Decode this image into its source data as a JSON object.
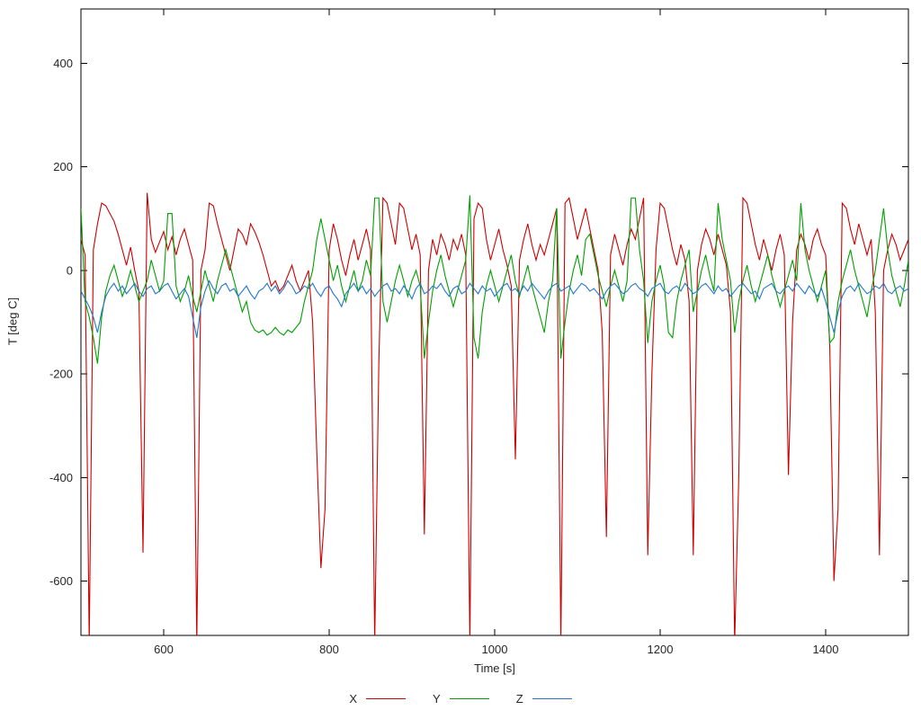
{
  "chart_data": {
    "type": "line",
    "title": "",
    "xlabel": "Time [s]",
    "ylabel": "T [deg C]",
    "xlim": [
      500,
      1500
    ],
    "ylim": [
      -705,
      505
    ],
    "xticks": [
      600,
      800,
      1000,
      1200,
      1400
    ],
    "yticks": [
      -600,
      -400,
      -200,
      0,
      200,
      400
    ],
    "grid": false,
    "legend_position": "below",
    "x_start": 500,
    "x_step": 5,
    "series": [
      {
        "name": "X",
        "color": "#cc0000",
        "values": [
          60,
          30,
          -720,
          40,
          90,
          130,
          125,
          110,
          95,
          70,
          40,
          10,
          45,
          0,
          -40,
          -545,
          150,
          60,
          35,
          55,
          75,
          40,
          65,
          30,
          60,
          80,
          50,
          20,
          -720,
          0,
          40,
          130,
          125,
          90,
          60,
          30,
          0,
          40,
          80,
          70,
          50,
          90,
          75,
          55,
          30,
          0,
          -30,
          -20,
          -40,
          -30,
          -10,
          10,
          -20,
          -40,
          -20,
          0,
          -100,
          -350,
          -575,
          -460,
          40,
          90,
          60,
          20,
          -10,
          30,
          60,
          20,
          50,
          80,
          40,
          -720,
          -180,
          140,
          130,
          90,
          50,
          130,
          120,
          80,
          40,
          70,
          30,
          -510,
          0,
          60,
          30,
          70,
          50,
          20,
          60,
          40,
          70,
          30,
          -720,
          100,
          130,
          120,
          60,
          20,
          50,
          80,
          40,
          10,
          -30,
          -365,
          20,
          60,
          90,
          50,
          20,
          50,
          30,
          60,
          90,
          120,
          -720,
          130,
          140,
          100,
          60,
          90,
          120,
          80,
          40,
          0,
          -120,
          -515,
          30,
          70,
          40,
          10,
          50,
          80,
          60,
          100,
          140,
          -550,
          -200,
          40,
          130,
          120,
          80,
          40,
          10,
          50,
          20,
          -60,
          -550,
          0,
          50,
          80,
          60,
          30,
          70,
          40,
          10,
          -80,
          -720,
          -400,
          140,
          130,
          90,
          50,
          20,
          60,
          30,
          0,
          40,
          70,
          30,
          -395,
          -100,
          40,
          70,
          50,
          20,
          60,
          80,
          50,
          30,
          -150,
          -600,
          -460,
          130,
          120,
          80,
          50,
          90,
          60,
          30,
          60,
          -80,
          -550,
          0,
          40,
          70,
          50,
          20,
          40,
          60
        ]
      },
      {
        "name": "Y",
        "color": "#00a000",
        "values": [
          120,
          -60,
          -90,
          -130,
          -180,
          -90,
          -40,
          -10,
          10,
          -20,
          -50,
          -30,
          0,
          -30,
          -60,
          -40,
          -20,
          20,
          -10,
          -40,
          -20,
          110,
          110,
          -30,
          -60,
          -40,
          -10,
          -50,
          -80,
          -40,
          0,
          -30,
          -60,
          -20,
          10,
          40,
          10,
          -20,
          -50,
          -80,
          -60,
          -100,
          -115,
          -120,
          -115,
          -125,
          -120,
          -110,
          -120,
          -125,
          -115,
          -120,
          -110,
          -100,
          -60,
          -30,
          0,
          60,
          100,
          60,
          20,
          -20,
          10,
          -30,
          -60,
          -30,
          0,
          -40,
          -20,
          20,
          -10,
          140,
          140,
          -60,
          -100,
          -60,
          -20,
          10,
          -20,
          -50,
          -20,
          0,
          -30,
          -170,
          -100,
          -40,
          0,
          30,
          -10,
          -40,
          -70,
          -40,
          -10,
          20,
          145,
          -130,
          -170,
          -80,
          -30,
          0,
          -30,
          -60,
          -30,
          0,
          30,
          -20,
          -50,
          -20,
          10,
          -30,
          -60,
          -90,
          -120,
          -60,
          -20,
          120,
          -170,
          -100,
          -40,
          0,
          30,
          -10,
          60,
          70,
          30,
          -10,
          -40,
          -70,
          -30,
          0,
          -30,
          -60,
          -20,
          140,
          140,
          40,
          -20,
          -140,
          -60,
          -20,
          10,
          -30,
          -120,
          -130,
          -60,
          -20,
          10,
          40,
          -80,
          -40,
          0,
          30,
          -10,
          -40,
          130,
          60,
          20,
          -20,
          -120,
          -60,
          -20,
          10,
          -30,
          -60,
          -30,
          0,
          30,
          -10,
          -40,
          -70,
          -40,
          -10,
          20,
          -20,
          130,
          40,
          0,
          -30,
          -60,
          -30,
          0,
          -140,
          -130,
          -60,
          -20,
          10,
          40,
          0,
          -30,
          -60,
          -90,
          -40,
          0,
          60,
          120,
          40,
          -10,
          -40,
          -70,
          -30,
          20
        ]
      },
      {
        "name": "Z",
        "color": "#2277cc",
        "values": [
          -40,
          -55,
          -70,
          -90,
          -120,
          -80,
          -50,
          -35,
          -25,
          -40,
          -30,
          -45,
          -35,
          -25,
          -40,
          -50,
          -35,
          -30,
          -45,
          -40,
          -30,
          -25,
          -40,
          -55,
          -45,
          -35,
          -50,
          -90,
          -130,
          -70,
          -40,
          -20,
          -35,
          -45,
          -30,
          -25,
          -40,
          -35,
          -50,
          -40,
          -30,
          -45,
          -55,
          -40,
          -35,
          -25,
          -40,
          -30,
          -45,
          -35,
          -20,
          -30,
          -45,
          -40,
          -30,
          -35,
          -25,
          -40,
          -50,
          -35,
          -30,
          -45,
          -55,
          -70,
          -45,
          -35,
          -25,
          -40,
          -30,
          -45,
          -35,
          -50,
          -40,
          -30,
          -25,
          -40,
          -35,
          -45,
          -30,
          -40,
          -55,
          -35,
          -25,
          -45,
          -40,
          -30,
          -35,
          -25,
          -40,
          -50,
          -35,
          -30,
          -45,
          -40,
          -25,
          -35,
          -45,
          -30,
          -40,
          -35,
          -50,
          -40,
          -30,
          -25,
          -40,
          -35,
          -45,
          -30,
          -40,
          -25,
          -35,
          -45,
          -55,
          -40,
          -30,
          -25,
          -40,
          -35,
          -30,
          -45,
          -35,
          -25,
          -30,
          -40,
          -35,
          -45,
          -55,
          -40,
          -30,
          -25,
          -35,
          -45,
          -40,
          -30,
          -25,
          -35,
          -40,
          -50,
          -35,
          -30,
          -25,
          -40,
          -45,
          -35,
          -30,
          -40,
          -25,
          -35,
          -45,
          -40,
          -30,
          -25,
          -35,
          -45,
          -30,
          -40,
          -35,
          -50,
          -40,
          -30,
          -25,
          -35,
          -45,
          -40,
          -55,
          -35,
          -30,
          -25,
          -40,
          -45,
          -35,
          -30,
          -40,
          -25,
          -35,
          -45,
          -30,
          -40,
          -50,
          -35,
          -60,
          -90,
          -120,
          -80,
          -50,
          -35,
          -30,
          -40,
          -25,
          -35,
          -45,
          -40,
          -30,
          -35,
          -25,
          -40,
          -45,
          -35,
          -30,
          -40,
          -35
        ]
      }
    ]
  }
}
